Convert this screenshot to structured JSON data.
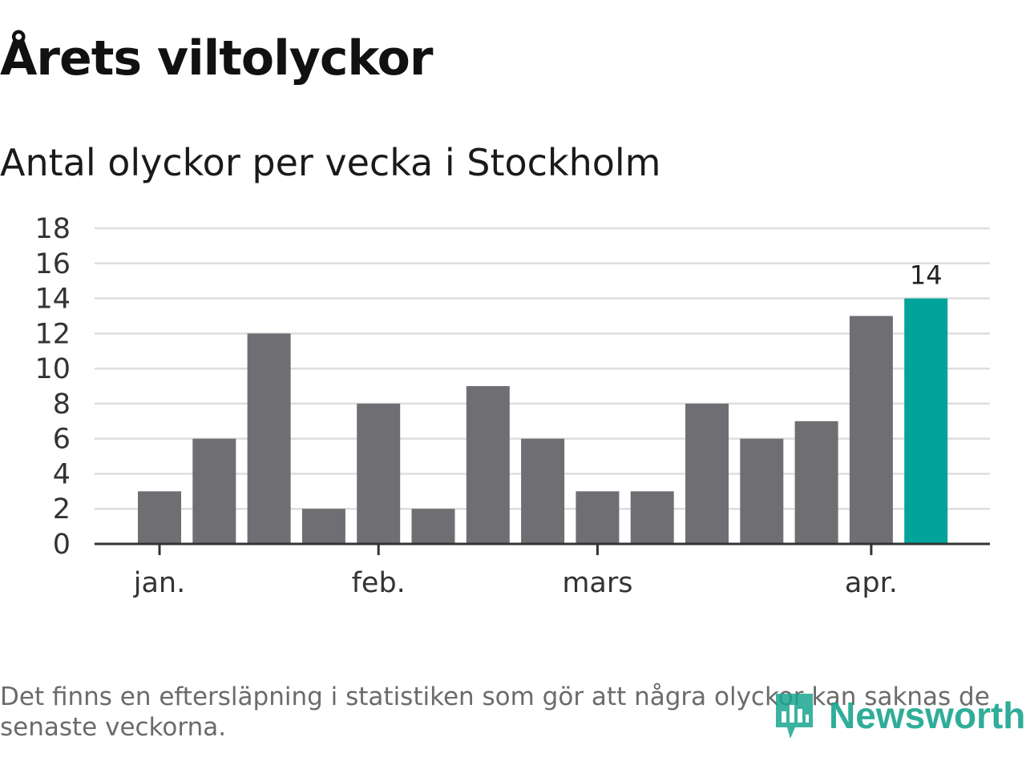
{
  "chart_data": {
    "type": "bar",
    "title": "Årets viltolyckor",
    "subtitle": "Antal olyckor per vecka i Stockholm",
    "values": [
      3,
      6,
      12,
      2,
      8,
      2,
      9,
      6,
      3,
      3,
      8,
      6,
      7,
      13,
      14
    ],
    "highlight_index": 14,
    "highlight_label": "14",
    "ylim": [
      0,
      18
    ],
    "yticks": [
      "0",
      "2",
      "4",
      "6",
      "8",
      "10",
      "12",
      "14",
      "16",
      "18"
    ],
    "xticks": [
      {
        "label": "jan.",
        "at_week": 0.0
      },
      {
        "label": "feb.",
        "at_week": 4.0
      },
      {
        "label": "mars",
        "at_week": 8.0
      },
      {
        "label": "apr.",
        "at_week": 13.0
      }
    ],
    "grid": true,
    "colors": {
      "bar": "#6f6e73",
      "highlight": "#00a499",
      "grid": "#dddddd",
      "axis": "#333333",
      "text": "#333333"
    }
  },
  "footnote": "Det finns en eftersläpning i statistiken som gör att några olyckor kan saknas de senaste veckorna.",
  "logo": {
    "text": "Newsworthy",
    "color": "#1aa58f"
  }
}
